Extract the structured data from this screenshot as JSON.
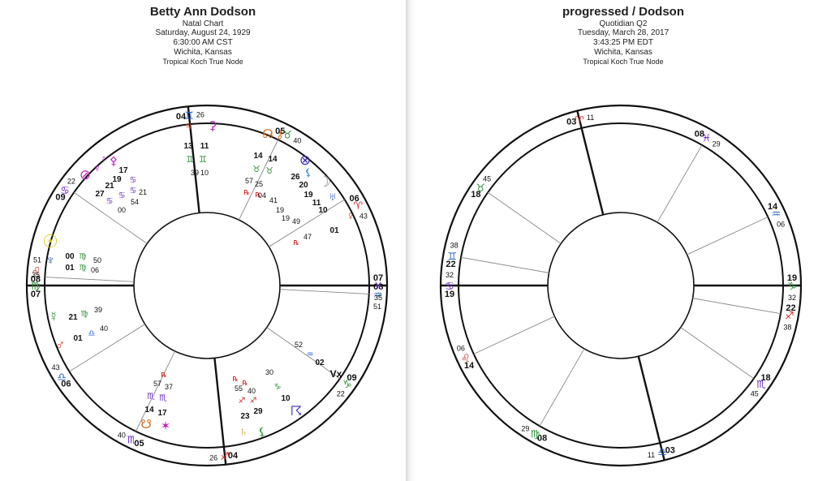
{
  "charts": [
    {
      "title": "Betty Ann Dodson",
      "subtitle": "Natal Chart",
      "date": "Saturday, August 24, 1929",
      "time": "6:30:00 AM CST",
      "place": "Wichita, Kansas",
      "settings": "Tropical    Koch True Node",
      "cusps": [
        {
          "deg": "07",
          "sign": "virgo-glyph",
          "min": "35"
        },
        {
          "deg": "06",
          "sign": "libra-glyph",
          "min": "43"
        },
        {
          "deg": "05",
          "sign": "scorpio-glyph",
          "min": "40"
        },
        {
          "deg": "04",
          "sign": "sagittarius-glyph",
          "min": "26"
        },
        {
          "deg": "09",
          "sign": "capricorn-glyph",
          "min": "22"
        },
        {
          "deg": "08",
          "sign": "aquarius-glyph",
          "min": "51"
        },
        {
          "deg": "07",
          "sign": "pisces-glyph",
          "min": "35"
        },
        {
          "deg": "06",
          "sign": "aries-glyph",
          "min": "43"
        },
        {
          "deg": "05",
          "sign": "taurus-glyph",
          "min": "40"
        },
        {
          "deg": "04",
          "sign": "gemini-glyph",
          "min": "26"
        },
        {
          "deg": "09",
          "sign": "cancer-glyph",
          "min": "22"
        },
        {
          "deg": "08",
          "sign": "leo-glyph",
          "min": "51"
        }
      ],
      "planet_groups": [
        {
          "name": "jupiter-venus-gemini",
          "glyphs": [
            "♃",
            "⚳"
          ],
          "lines": [
            "13 11",
            "♊ ♊",
            "39 10"
          ]
        },
        {
          "name": "chiron-ceres-taurus",
          "glyphs": [
            "☊",
            "⚷"
          ],
          "lines": [
            "14 14",
            "♉ ♉",
            "57 25",
            "℞ ℞"
          ]
        },
        {
          "name": "aries-cluster",
          "glyphs": [
            "⊗",
            "☽",
            "♅",
            "♀"
          ],
          "lines": [
            "26",
            "20",
            "19",
            "11",
            "10",
            "01",
            "47"
          ]
        },
        {
          "name": "sun-neptune-virgo",
          "glyphs": [
            "☉",
            "♆"
          ],
          "lines": [
            "00 ♍ 50",
            "01 ♍ 06"
          ]
        },
        {
          "name": "mercury-mars-libra",
          "glyphs": [
            "☿",
            "♂"
          ],
          "lines": [
            "21 ♍ 39",
            "01 ♎ 40"
          ]
        },
        {
          "name": "leo-cancer-cluster",
          "glyphs": [
            "⊘",
            "♀",
            "⚴"
          ],
          "lines": [
            "17",
            "19",
            "21",
            "27",
            "54",
            "00"
          ]
        },
        {
          "name": "scorpio-cluster",
          "glyphs": [
            "☋",
            "✶"
          ],
          "lines": [
            "57 37",
            "14 17"
          ]
        },
        {
          "name": "sagittarius-cluster",
          "glyphs": [
            "♄",
            "⚸"
          ],
          "lines": [
            "55 40",
            "23 29"
          ]
        },
        {
          "name": "capricorn-cluster",
          "glyphs": [
            "♑",
            "⚸"
          ],
          "lines": [
            "30",
            "10"
          ]
        },
        {
          "name": "aquarius-cluster",
          "glyphs": [
            "♒",
            "Vx"
          ],
          "lines": [
            "52",
            "02"
          ]
        }
      ]
    },
    {
      "title": "progressed / Dodson",
      "subtitle": "Quotidian Q2",
      "date": "Tuesday, March 28, 2017",
      "time": "3:43:25 PM EDT",
      "place": "Wichita, Kansas",
      "settings": "Tropical    Koch True Node",
      "cusps": [
        {
          "deg": "19",
          "sign": "cancer-glyph",
          "min": "32"
        },
        {
          "deg": "14",
          "sign": "leo-glyph",
          "min": "06"
        },
        {
          "deg": "08",
          "sign": "virgo-glyph",
          "min": "29"
        },
        {
          "deg": "03",
          "sign": "libra-glyph",
          "min": "11"
        },
        {
          "deg": "18",
          "sign": "scorpio-glyph",
          "min": "45"
        },
        {
          "deg": "22",
          "sign": "sagittarius-glyph",
          "min": "38"
        },
        {
          "deg": "19",
          "sign": "capricorn-glyph",
          "min": "32"
        },
        {
          "deg": "14",
          "sign": "aquarius-glyph",
          "min": "06"
        },
        {
          "deg": "08",
          "sign": "pisces-glyph",
          "min": "29"
        },
        {
          "deg": "03",
          "sign": "aries-glyph",
          "min": "11"
        },
        {
          "deg": "18",
          "sign": "taurus-glyph",
          "min": "45"
        },
        {
          "deg": "22",
          "sign": "gemini-glyph",
          "min": "38"
        }
      ]
    }
  ],
  "glyphs": {
    "aries": "♈",
    "taurus": "♉",
    "gemini": "♊",
    "cancer": "♋",
    "leo": "♌",
    "virgo": "♍",
    "libra": "♎",
    "scorpio": "♏",
    "sagittarius": "♐",
    "capricorn": "♑",
    "aquarius": "♒",
    "pisces": "♓"
  },
  "colors": {
    "fire": "#d62c2c",
    "earth": "#2f8f3a",
    "air": "#2a63c9",
    "water": "#6a2bc4",
    "sun": "#d8c400",
    "moon": "#8a8a8a",
    "mars": "#e0402a",
    "venus": "#c23a1a",
    "jupiter": "#d24a2a",
    "saturn": "#d49a1a",
    "uranus": "#2a63c9",
    "neptune": "#2a63c9",
    "pluto": "#c022c0",
    "chiron": "#d46a1a",
    "node": "#d46a1a",
    "part": "#3a2ac0"
  }
}
